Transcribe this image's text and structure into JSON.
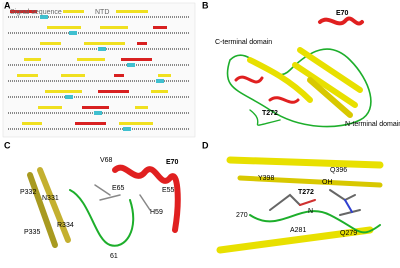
{
  "panels": [
    {
      "label": "A",
      "annotations": [
        "Signal sequence",
        "NTD"
      ]
    },
    {
      "label": "B",
      "annotations": [
        "E70",
        "C-terminal domain",
        "T272",
        "N-terminal domain"
      ]
    },
    {
      "label": "C",
      "annotations": [
        "V68",
        "E70",
        "P332",
        "N331",
        "E65",
        "E55",
        "H59",
        "R334",
        "P335",
        "61"
      ]
    },
    {
      "label": "D",
      "annotations": [
        "Y398",
        "OH",
        "Q396",
        "T272",
        "270",
        "A281",
        "N",
        "Q279"
      ]
    }
  ]
}
